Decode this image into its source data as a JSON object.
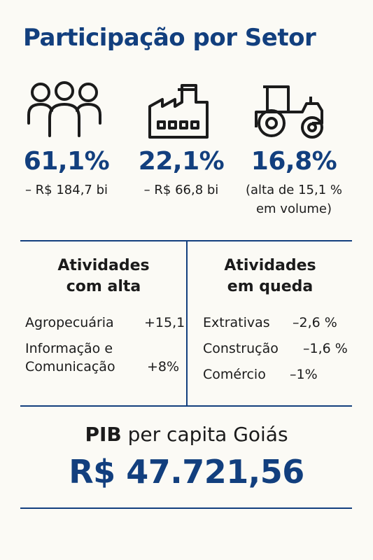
{
  "title": "Participação por Setor",
  "colors": {
    "accent": "#123f7e",
    "text": "#1b1b1b",
    "background": "#fbfaf5"
  },
  "sectors": [
    {
      "icon": "people-icon",
      "percent": "61,1%",
      "detail_lines": [
        "– R$ 184,7 bi"
      ]
    },
    {
      "icon": "factory-icon",
      "percent": "22,1%",
      "detail_lines": [
        "– R$ 66,8 bi"
      ]
    },
    {
      "icon": "tractor-icon",
      "percent": "16,8%",
      "detail_lines": [
        "(alta de 15,1 %",
        "em volume)"
      ]
    }
  ],
  "rising": {
    "heading_lines": [
      "Atividades",
      "com alta"
    ],
    "items": [
      {
        "label_lines": [
          "Agropecuária"
        ],
        "value": "+15,1"
      },
      {
        "label_lines": [
          "Informação e",
          "Comunicação"
        ],
        "value": "+8%"
      }
    ]
  },
  "falling": {
    "heading_lines": [
      "Atividades",
      "em queda"
    ],
    "items": [
      {
        "label": "Extrativas",
        "value": "–2,6 %"
      },
      {
        "label": "Construção",
        "value": "–1,6 %"
      },
      {
        "label": "Comércio",
        "value": "–1%"
      }
    ]
  },
  "pib": {
    "label_bold": "PIB",
    "label_rest": " per capita Goiás",
    "value": "R$ 47.721,56"
  }
}
